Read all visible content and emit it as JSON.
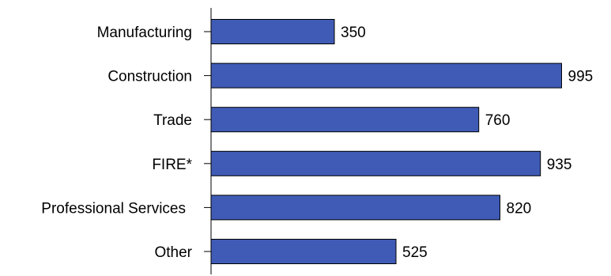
{
  "chart_data": {
    "type": "bar",
    "orientation": "horizontal",
    "categories": [
      "Manufacturing",
      "Construction",
      "Trade",
      "FIRE*",
      "Professional Services",
      "Other"
    ],
    "values": [
      350,
      995,
      760,
      935,
      820,
      525
    ],
    "value_labels": [
      "350",
      "995",
      "760",
      "935",
      "820",
      "525"
    ],
    "xlim": [
      0,
      1000
    ],
    "grid": false,
    "legend": "none",
    "bar_color": "#3F5BB5",
    "bar_stroke": "#000000"
  }
}
